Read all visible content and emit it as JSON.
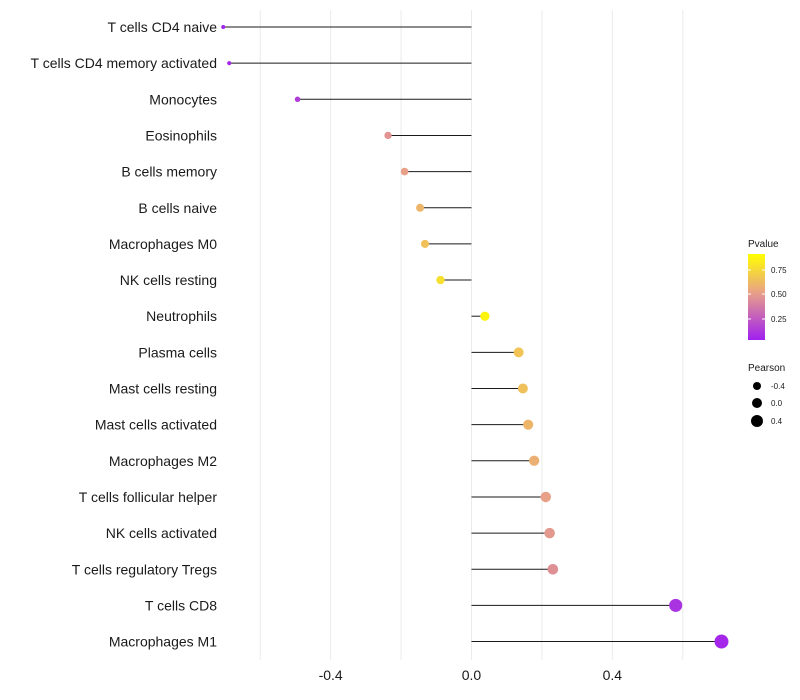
{
  "chart_data": {
    "type": "lollipop",
    "title": "",
    "xlabel": "",
    "ylabel": "",
    "xlim": [
      -0.7,
      0.72
    ],
    "xticks": [
      -0.4,
      0.0,
      0.4
    ],
    "xtick_labels": [
      "-0.4",
      "0.0",
      "0.4"
    ],
    "grid": true,
    "categories": [
      "T cells CD4 naive",
      "T cells CD4 memory activated",
      "Monocytes",
      "Eosinophils",
      "B cells memory",
      "B cells naive",
      "Macrophages M0",
      "NK cells resting",
      "Neutrophils",
      "Plasma cells",
      "Mast cells resting",
      "Mast cells activated",
      "Macrophages M2",
      "T cells follicular helper",
      "NK cells activated",
      "T cells regulatory  Tregs",
      "T cells CD8",
      "Macrophages M1"
    ],
    "pearson": [
      -0.705,
      -0.688,
      -0.494,
      -0.237,
      -0.19,
      -0.146,
      -0.132,
      -0.088,
      0.038,
      0.134,
      0.146,
      0.161,
      0.178,
      0.211,
      0.222,
      0.231,
      0.58,
      0.71
    ],
    "pvalue": [
      0.02,
      0.03,
      0.12,
      0.5,
      0.55,
      0.65,
      0.7,
      0.85,
      0.95,
      0.72,
      0.7,
      0.65,
      0.62,
      0.55,
      0.52,
      0.48,
      0.08,
      0.03
    ],
    "legend_position": "right",
    "pvalue_legend": {
      "title": "Pvalue",
      "labels": [
        "0.75",
        "0.50",
        "0.25"
      ],
      "color_low": "#a020f0",
      "color_high": "#ffff00"
    },
    "pearson_legend": {
      "title": "Pearson",
      "labels": [
        "-0.4",
        "0.0",
        "0.4"
      ]
    }
  }
}
